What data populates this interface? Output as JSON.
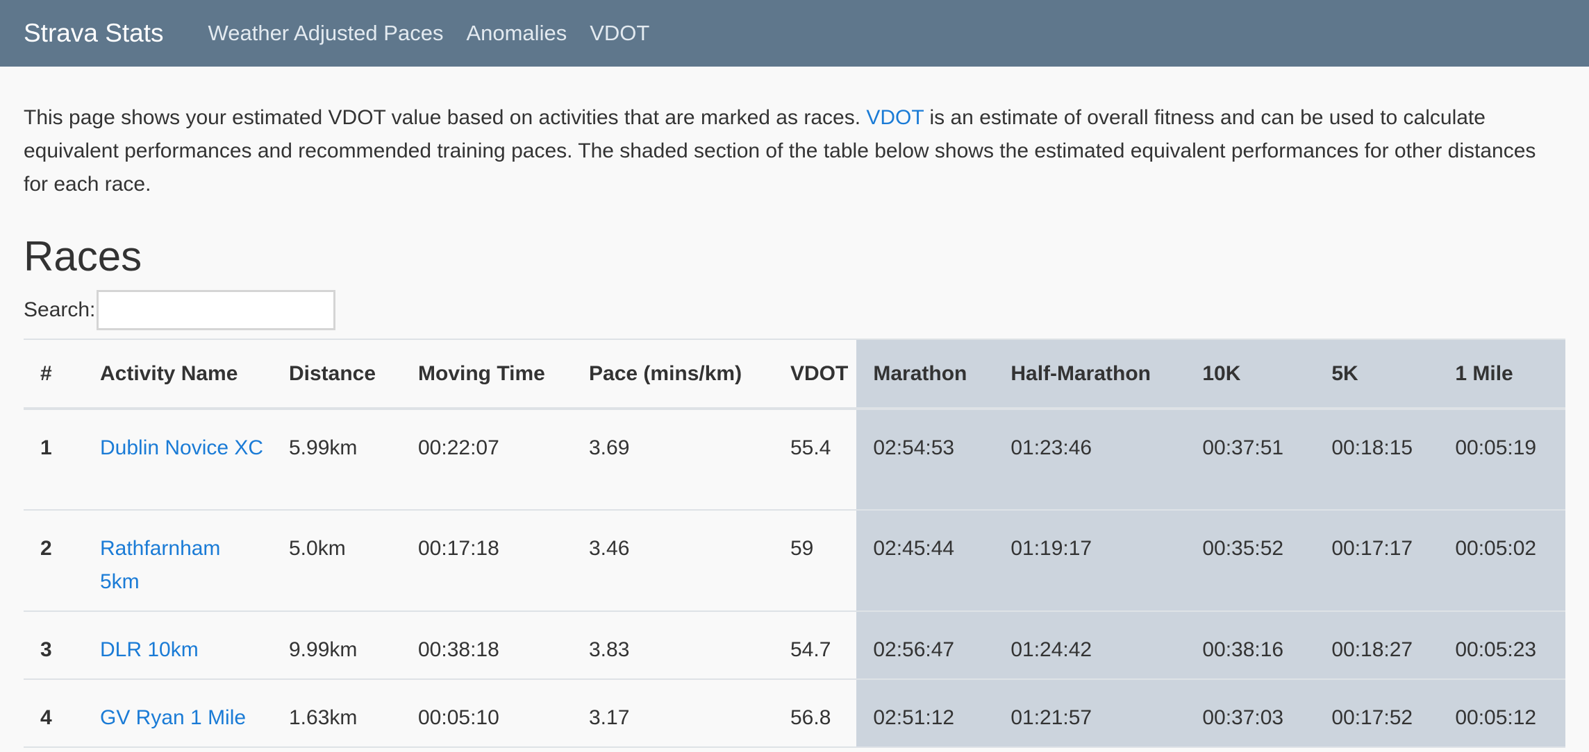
{
  "nav": {
    "brand": "Strava Stats",
    "links": [
      "Weather Adjusted Paces",
      "Anomalies",
      "VDOT"
    ]
  },
  "intro": {
    "part1": "This page shows your estimated VDOT value based on activities that are marked as races. ",
    "link": "VDOT",
    "part2": " is an estimate of overall fitness and can be used to calculate equivalent performances and recommended training paces. The shaded section of the table below shows the estimated equivalent performances for other distances for each race."
  },
  "races": {
    "title": "Races",
    "search_label": "Search:",
    "search_value": "",
    "columns": [
      "#",
      "Activity Name",
      "Distance",
      "Moving Time",
      "Pace (mins/km)",
      "VDOT",
      "Marathon",
      "Half-Marathon",
      "10K",
      "5K",
      "1 Mile"
    ],
    "rows": [
      [
        "1",
        "Dublin Novice XC",
        "5.99km",
        "00:22:07",
        "3.69",
        "55.4",
        "02:54:53",
        "01:23:46",
        "00:37:51",
        "00:18:15",
        "00:05:19"
      ],
      [
        "2",
        "Rathfarnham 5km",
        "5.0km",
        "00:17:18",
        "3.46",
        "59",
        "02:45:44",
        "01:19:17",
        "00:35:52",
        "00:17:17",
        "00:05:02"
      ],
      [
        "3",
        "DLR 10km",
        "9.99km",
        "00:38:18",
        "3.83",
        "54.7",
        "02:56:47",
        "01:24:42",
        "00:38:16",
        "00:18:27",
        "00:05:23"
      ],
      [
        "4",
        "GV Ryan 1 Mile",
        "1.63km",
        "00:05:10",
        "3.17",
        "56.8",
        "02:51:12",
        "01:21:57",
        "00:37:03",
        "00:17:52",
        "00:05:12"
      ]
    ]
  }
}
